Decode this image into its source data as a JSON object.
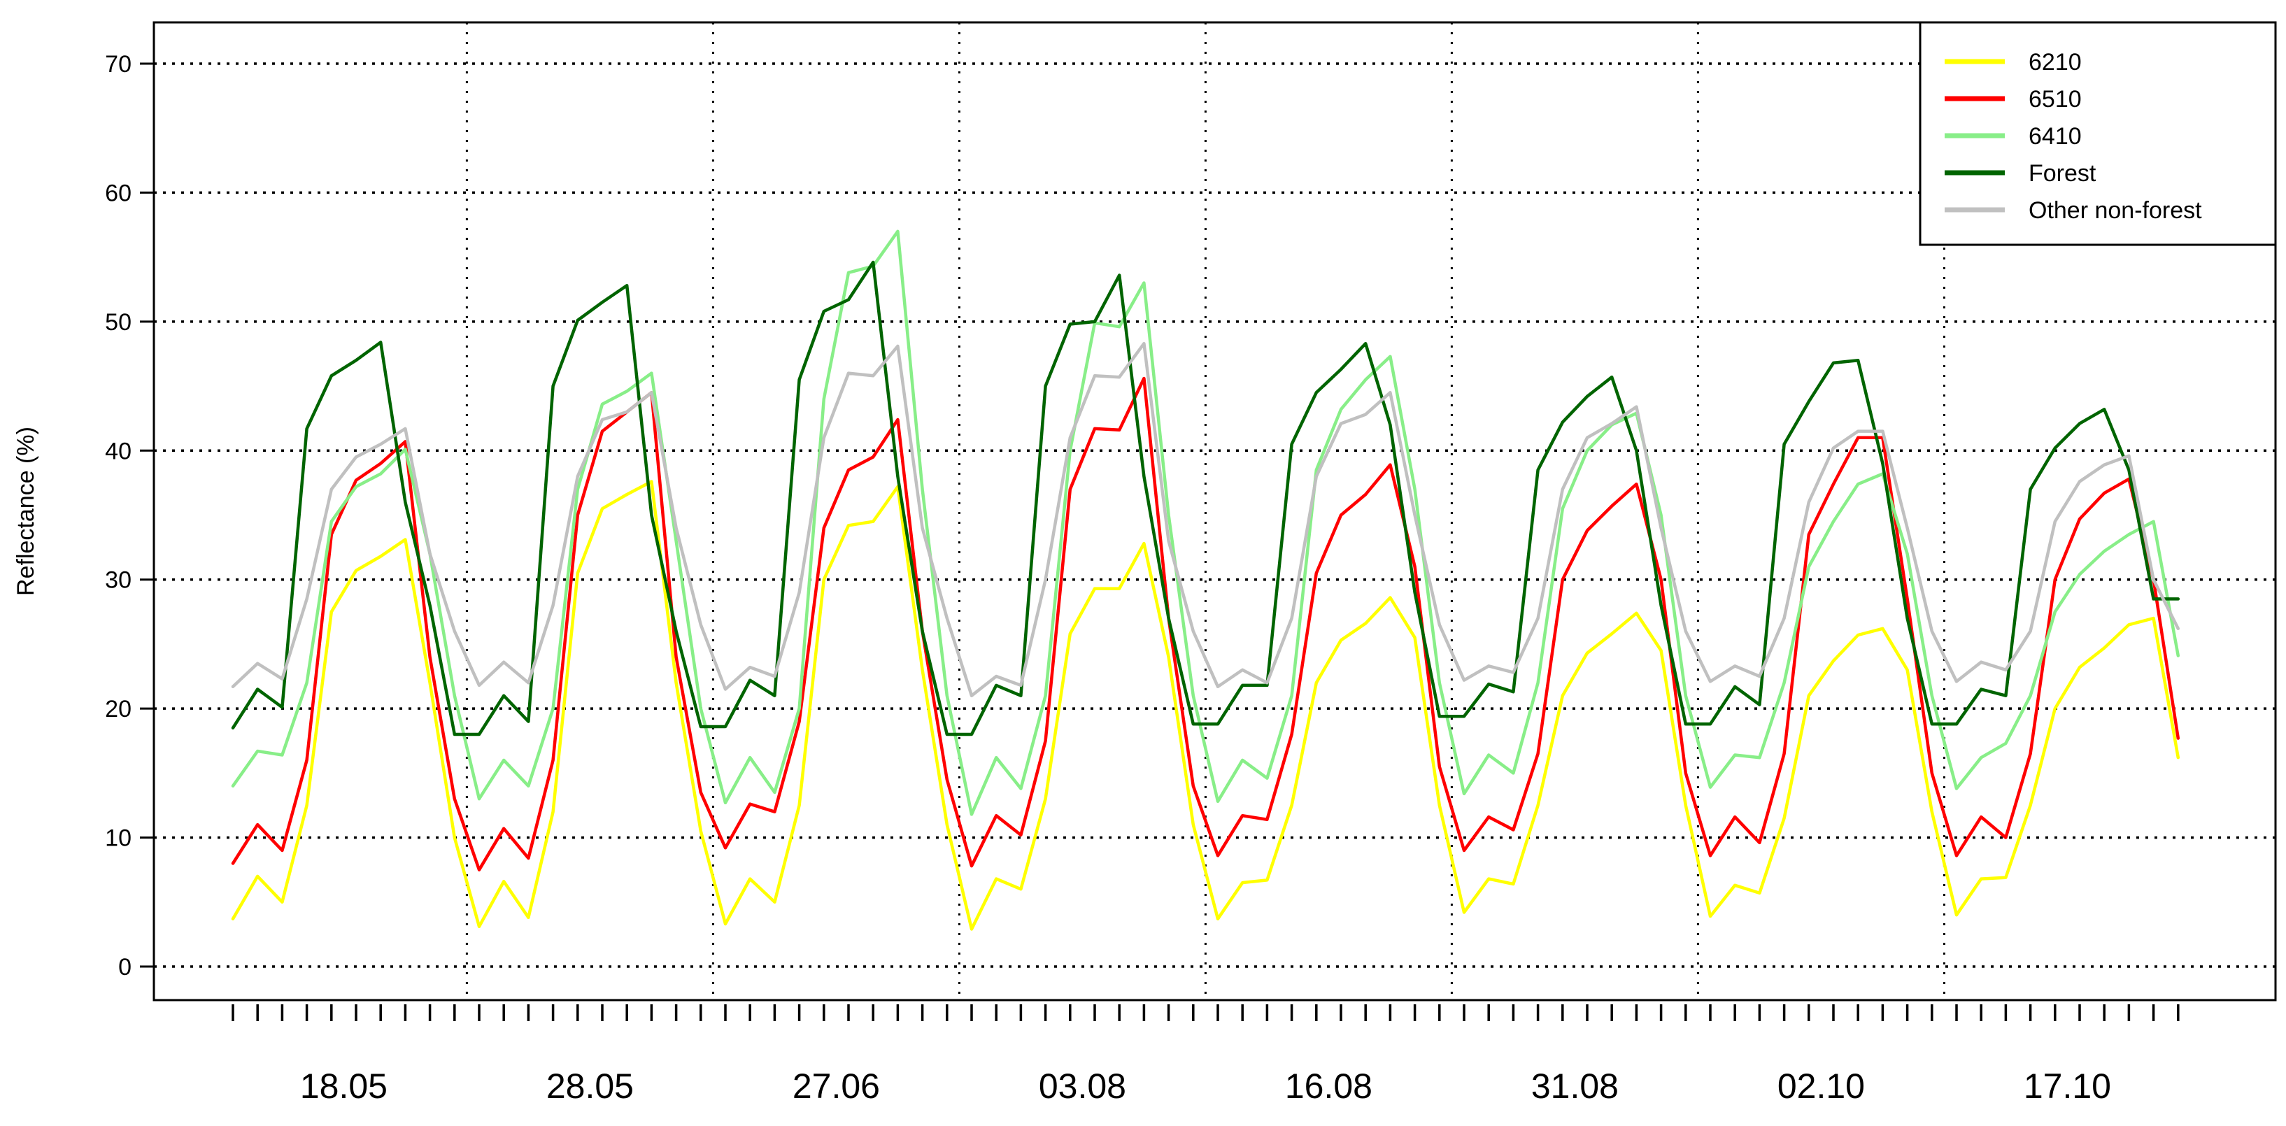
{
  "chart_data": {
    "type": "line",
    "title": "",
    "xlabel": "",
    "ylabel": "Reflectance (%)",
    "ylim": [
      0,
      70
    ],
    "yticks": [
      0,
      10,
      20,
      30,
      40,
      50,
      60,
      70
    ],
    "grid": "horizontal dotted at each y tick; vertical dotted separators between date groups",
    "legend_placement": "top-right",
    "x": [
      "18.05",
      "28.05",
      "27.06",
      "03.08",
      "16.08",
      "31.08",
      "02.10",
      "17.10"
    ],
    "bands_per_date": 10,
    "series": [
      {
        "name": "6210",
        "color": "#ffff00",
        "values": [
          [
            3.7,
            7.0,
            5.0,
            12.5,
            27.5,
            30.7,
            31.8,
            33.1,
            22.0,
            10.0
          ],
          [
            3.1,
            6.6,
            3.8,
            12.0,
            30.5,
            35.5,
            36.6,
            37.6,
            22.0,
            10.5
          ],
          [
            3.3,
            6.8,
            5.0,
            12.5,
            30.0,
            34.2,
            34.5,
            37.2,
            23.0,
            11.0
          ],
          [
            2.9,
            6.8,
            6.0,
            13.0,
            25.8,
            29.3,
            29.3,
            32.8,
            24.0,
            11.0
          ],
          [
            3.7,
            6.5,
            6.7,
            12.5,
            22.0,
            25.3,
            26.6,
            28.6,
            25.5,
            12.5
          ],
          [
            4.2,
            6.8,
            6.4,
            12.5,
            21.0,
            24.3,
            25.8,
            27.4,
            24.5,
            12.5
          ],
          [
            3.9,
            6.3,
            5.7,
            11.5,
            21.0,
            23.7,
            25.7,
            26.2,
            23.0,
            12.0
          ],
          [
            4.0,
            6.8,
            6.9,
            12.5,
            20.0,
            23.2,
            24.7,
            26.5,
            27.0,
            16.2
          ]
        ]
      },
      {
        "name": "6510",
        "color": "#ff0000",
        "values": [
          [
            8.0,
            11.0,
            9.0,
            16.0,
            33.5,
            37.7,
            39.0,
            40.7,
            24.0,
            13.0
          ],
          [
            7.5,
            10.7,
            8.4,
            16.0,
            35.0,
            41.5,
            43.0,
            44.5,
            24.0,
            13.5
          ],
          [
            9.2,
            12.6,
            12.0,
            19.0,
            34.0,
            38.5,
            39.5,
            42.4,
            26.0,
            14.5
          ],
          [
            7.8,
            11.7,
            10.2,
            17.5,
            37.0,
            41.7,
            41.6,
            45.6,
            27.0,
            14.0
          ],
          [
            8.6,
            11.7,
            11.4,
            18.0,
            30.5,
            35.0,
            36.6,
            38.9,
            31.0,
            15.5
          ],
          [
            9.0,
            11.6,
            10.6,
            16.5,
            30.0,
            33.8,
            35.7,
            37.4,
            30.0,
            15.0
          ],
          [
            8.6,
            11.6,
            9.6,
            16.5,
            33.5,
            37.4,
            41.0,
            41.0,
            28.5,
            15.0
          ],
          [
            8.6,
            11.6,
            10.0,
            16.5,
            30.0,
            34.7,
            36.7,
            37.8,
            30.0,
            17.7
          ]
        ]
      },
      {
        "name": "6410",
        "color": "#88ee88",
        "values": [
          [
            14.0,
            16.7,
            16.4,
            22.0,
            34.5,
            37.2,
            38.2,
            40.1,
            32.0,
            21.0
          ],
          [
            13.0,
            16.0,
            14.0,
            20.0,
            37.0,
            43.6,
            44.6,
            46.0,
            33.0,
            20.0
          ],
          [
            12.7,
            16.2,
            13.5,
            20.0,
            44.0,
            53.8,
            54.3,
            57.0,
            37.0,
            21.0
          ],
          [
            11.8,
            16.2,
            13.8,
            21.0,
            40.0,
            49.9,
            49.6,
            53.0,
            35.0,
            21.0
          ],
          [
            12.8,
            16.0,
            14.6,
            21.0,
            38.5,
            43.2,
            45.5,
            47.3,
            37.0,
            22.0
          ],
          [
            13.4,
            16.4,
            15.0,
            22.0,
            35.5,
            40.0,
            42.0,
            42.9,
            35.0,
            21.0
          ],
          [
            13.9,
            16.4,
            16.2,
            22.0,
            31.0,
            34.5,
            37.4,
            38.2,
            32.0,
            21.0
          ],
          [
            13.8,
            16.2,
            17.3,
            21.0,
            27.5,
            30.4,
            32.2,
            33.5,
            34.5,
            24.1
          ]
        ]
      },
      {
        "name": "Forest",
        "color": "#006400",
        "values": [
          [
            18.5,
            21.5,
            20.1,
            41.7,
            45.8,
            47.0,
            48.4,
            36.0,
            28.0,
            18.0
          ],
          [
            18.0,
            21.0,
            19.0,
            45.0,
            50.1,
            51.5,
            52.8,
            35.0,
            26.0,
            18.6
          ],
          [
            18.6,
            22.2,
            21.0,
            45.5,
            50.8,
            51.7,
            54.6,
            38.0,
            26.0,
            18.0
          ],
          [
            18.0,
            21.8,
            21.0,
            45.0,
            49.8,
            50.0,
            53.6,
            38.0,
            27.0,
            18.8
          ],
          [
            18.8,
            21.8,
            21.8,
            40.5,
            44.5,
            46.3,
            48.3,
            42.0,
            29.0,
            19.4
          ],
          [
            19.4,
            21.9,
            21.3,
            38.5,
            42.2,
            44.2,
            45.7,
            40.0,
            28.0,
            18.8
          ],
          [
            18.8,
            21.7,
            20.3,
            40.5,
            43.8,
            46.8,
            47.0,
            39.0,
            27.0,
            18.8
          ],
          [
            18.8,
            21.5,
            21.0,
            37.0,
            40.2,
            42.1,
            43.2,
            38.5,
            28.5,
            28.5
          ]
        ]
      },
      {
        "name": "Other non-forest",
        "color": "#c0c0c0",
        "values": [
          [
            21.7,
            23.5,
            22.3,
            28.5,
            37.0,
            39.5,
            40.5,
            41.7,
            32.0,
            26.0
          ],
          [
            21.8,
            23.6,
            22.0,
            28.0,
            38.0,
            42.4,
            43.0,
            44.5,
            34.0,
            26.5
          ],
          [
            21.5,
            23.2,
            22.5,
            29.0,
            41.0,
            46.0,
            45.8,
            48.1,
            34.0,
            27.0
          ],
          [
            21.0,
            22.5,
            21.8,
            30.0,
            41.0,
            45.8,
            45.7,
            48.3,
            33.0,
            26.0
          ],
          [
            21.7,
            23.0,
            22.0,
            27.0,
            38.0,
            42.1,
            42.8,
            44.5,
            35.0,
            26.5
          ],
          [
            22.2,
            23.3,
            22.8,
            27.0,
            37.0,
            41.0,
            42.1,
            43.4,
            34.0,
            26.0
          ],
          [
            22.1,
            23.3,
            22.5,
            27.0,
            36.0,
            40.2,
            41.5,
            41.5,
            34.0,
            26.0
          ],
          [
            22.1,
            23.6,
            23.0,
            26.0,
            34.5,
            37.6,
            38.9,
            39.6,
            30.0,
            26.2
          ]
        ]
      }
    ]
  }
}
